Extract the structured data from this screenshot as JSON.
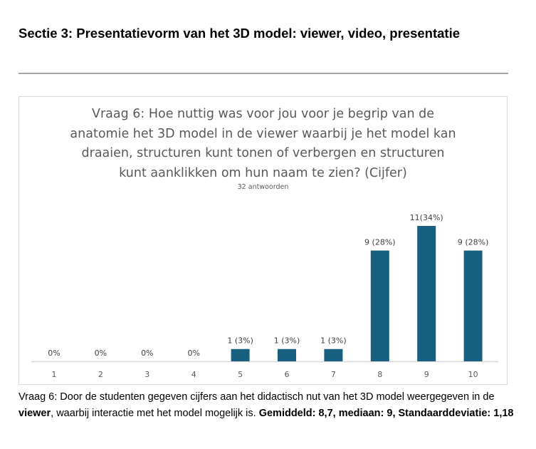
{
  "section_heading": "Sectie 3: Presentatievorm van het 3D model: viewer, video, presentatie",
  "chart_data": {
    "type": "bar",
    "title_lines": [
      "Vraag 6: Hoe nuttig was voor jou voor je begrip van de",
      "anatomie het 3D model in de viewer waarbij je het model kan",
      "draaien, structuren kunt tonen of verbergen en structuren",
      "kunt aanklikken om hun naam te zien? (Cijfer)"
    ],
    "subtitle": "32 antwoorden",
    "categories": [
      "1",
      "2",
      "3",
      "4",
      "5",
      "6",
      "7",
      "8",
      "9",
      "10"
    ],
    "values": [
      0,
      0,
      0,
      0,
      1,
      1,
      1,
      9,
      11,
      9
    ],
    "data_labels": [
      "0%",
      "0%",
      "0%",
      "0%",
      "1 (3%)",
      "1 (3%)",
      "1 (3%)",
      "9 (28%)",
      "11(34%)",
      "9 (28%)"
    ],
    "xlabel": "",
    "ylabel": "",
    "ylim": [
      0,
      11
    ],
    "grid": false,
    "bar_color": "#17607f"
  },
  "caption": {
    "part1": "Vraag 6: Door de studenten gegeven cijfers aan het didactisch nut van het 3D model weergegeven in de ",
    "bold1": "viewer",
    "part2": ", waarbij interactie met het model mogelijk is. ",
    "bold2": "Gemiddeld: 8,7, mediaan: 9, Standaarddeviatie: 1,18"
  }
}
